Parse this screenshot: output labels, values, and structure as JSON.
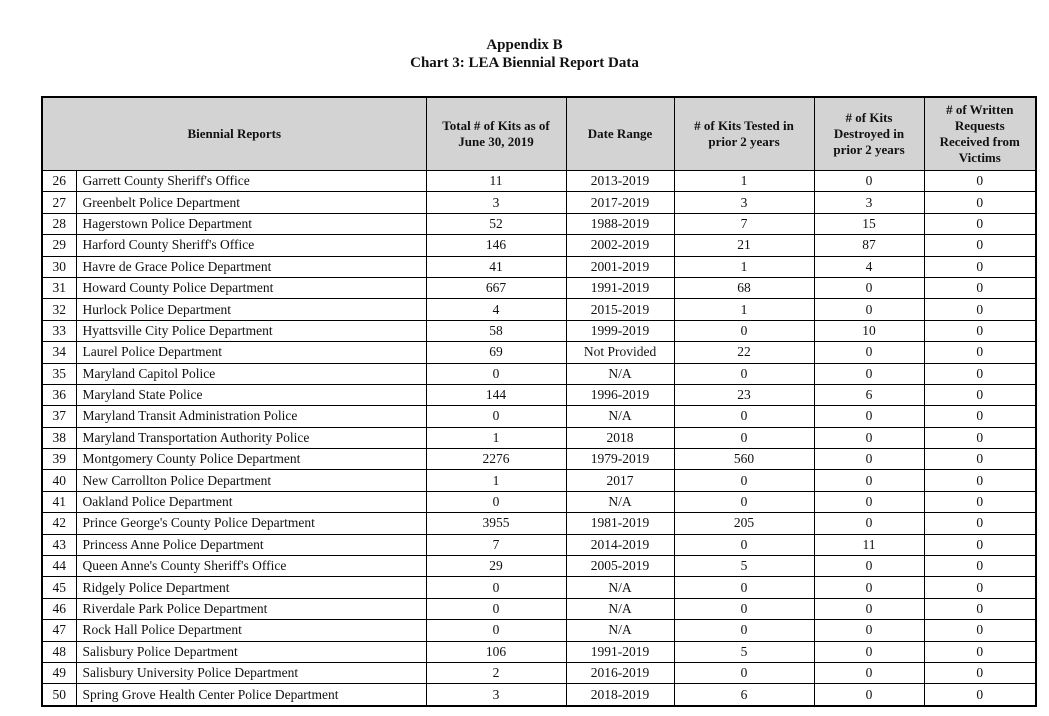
{
  "page": {
    "title_line1": "Appendix B",
    "title_line2": "Chart 3: LEA Biennial Report Data"
  },
  "table": {
    "headers": {
      "biennial_reports": "Biennial Reports",
      "total_kits": "Total # of Kits as of June 30, 2019",
      "date_range": "Date Range",
      "kits_tested": "# of Kits Tested in prior 2 years",
      "kits_destroyed": "# of Kits Destroyed in prior 2 years",
      "written_requests": "# of Written Requests Received from Victims"
    },
    "column_names": [
      "row-number",
      "agency-name",
      "total-kits",
      "date-range",
      "kits-tested",
      "kits-destroyed",
      "written-requests"
    ],
    "rows": [
      [
        "26",
        "Garrett County Sheriff's Office",
        "11",
        "2013-2019",
        "1",
        "0",
        "0"
      ],
      [
        "27",
        "Greenbelt Police Department",
        "3",
        "2017-2019",
        "3",
        "3",
        "0"
      ],
      [
        "28",
        "Hagerstown Police Department",
        "52",
        "1988-2019",
        "7",
        "15",
        "0"
      ],
      [
        "29",
        "Harford County Sheriff's Office",
        "146",
        "2002-2019",
        "21",
        "87",
        "0"
      ],
      [
        "30",
        "Havre de Grace Police Department",
        "41",
        "2001-2019",
        "1",
        "4",
        "0"
      ],
      [
        "31",
        "Howard County Police Department",
        "667",
        "1991-2019",
        "68",
        "0",
        "0"
      ],
      [
        "32",
        "Hurlock Police Department",
        "4",
        "2015-2019",
        "1",
        "0",
        "0"
      ],
      [
        "33",
        "Hyattsville City Police Department",
        "58",
        "1999-2019",
        "0",
        "10",
        "0"
      ],
      [
        "34",
        "Laurel Police Department",
        "69",
        "Not Provided",
        "22",
        "0",
        "0"
      ],
      [
        "35",
        "Maryland Capitol Police",
        "0",
        "N/A",
        "0",
        "0",
        "0"
      ],
      [
        "36",
        "Maryland State Police",
        "144",
        "1996-2019",
        "23",
        "6",
        "0"
      ],
      [
        "37",
        "Maryland Transit Administration Police",
        "0",
        "N/A",
        "0",
        "0",
        "0"
      ],
      [
        "38",
        "Maryland Transportation Authority Police",
        "1",
        "2018",
        "0",
        "0",
        "0"
      ],
      [
        "39",
        "Montgomery County Police Department",
        "2276",
        "1979-2019",
        "560",
        "0",
        "0"
      ],
      [
        "40",
        "New Carrollton Police Department",
        "1",
        "2017",
        "0",
        "0",
        "0"
      ],
      [
        "41",
        "Oakland Police Department",
        "0",
        "N/A",
        "0",
        "0",
        "0"
      ],
      [
        "42",
        "Prince George's County Police Department",
        "3955",
        "1981-2019",
        "205",
        "0",
        "0"
      ],
      [
        "43",
        "Princess Anne Police Department",
        "7",
        "2014-2019",
        "0",
        "11",
        "0"
      ],
      [
        "44",
        "Queen Anne's County Sheriff's Office",
        "29",
        "2005-2019",
        "5",
        "0",
        "0"
      ],
      [
        "45",
        "Ridgely Police Department",
        "0",
        "N/A",
        "0",
        "0",
        "0"
      ],
      [
        "46",
        "Riverdale Park Police Department",
        "0",
        "N/A",
        "0",
        "0",
        "0"
      ],
      [
        "47",
        "Rock Hall Police Department",
        "0",
        "N/A",
        "0",
        "0",
        "0"
      ],
      [
        "48",
        "Salisbury Police Department",
        "106",
        "1991-2019",
        "5",
        "0",
        "0"
      ],
      [
        "49",
        "Salisbury University Police Department",
        "2",
        "2016-2019",
        "0",
        "0",
        "0"
      ],
      [
        "50",
        "Spring Grove Health Center Police Department",
        "3",
        "2018-2019",
        "6",
        "0",
        "0"
      ]
    ]
  },
  "colors": {
    "header_bg": "#d3d3d3",
    "border": "#000000",
    "text": "#111111"
  }
}
